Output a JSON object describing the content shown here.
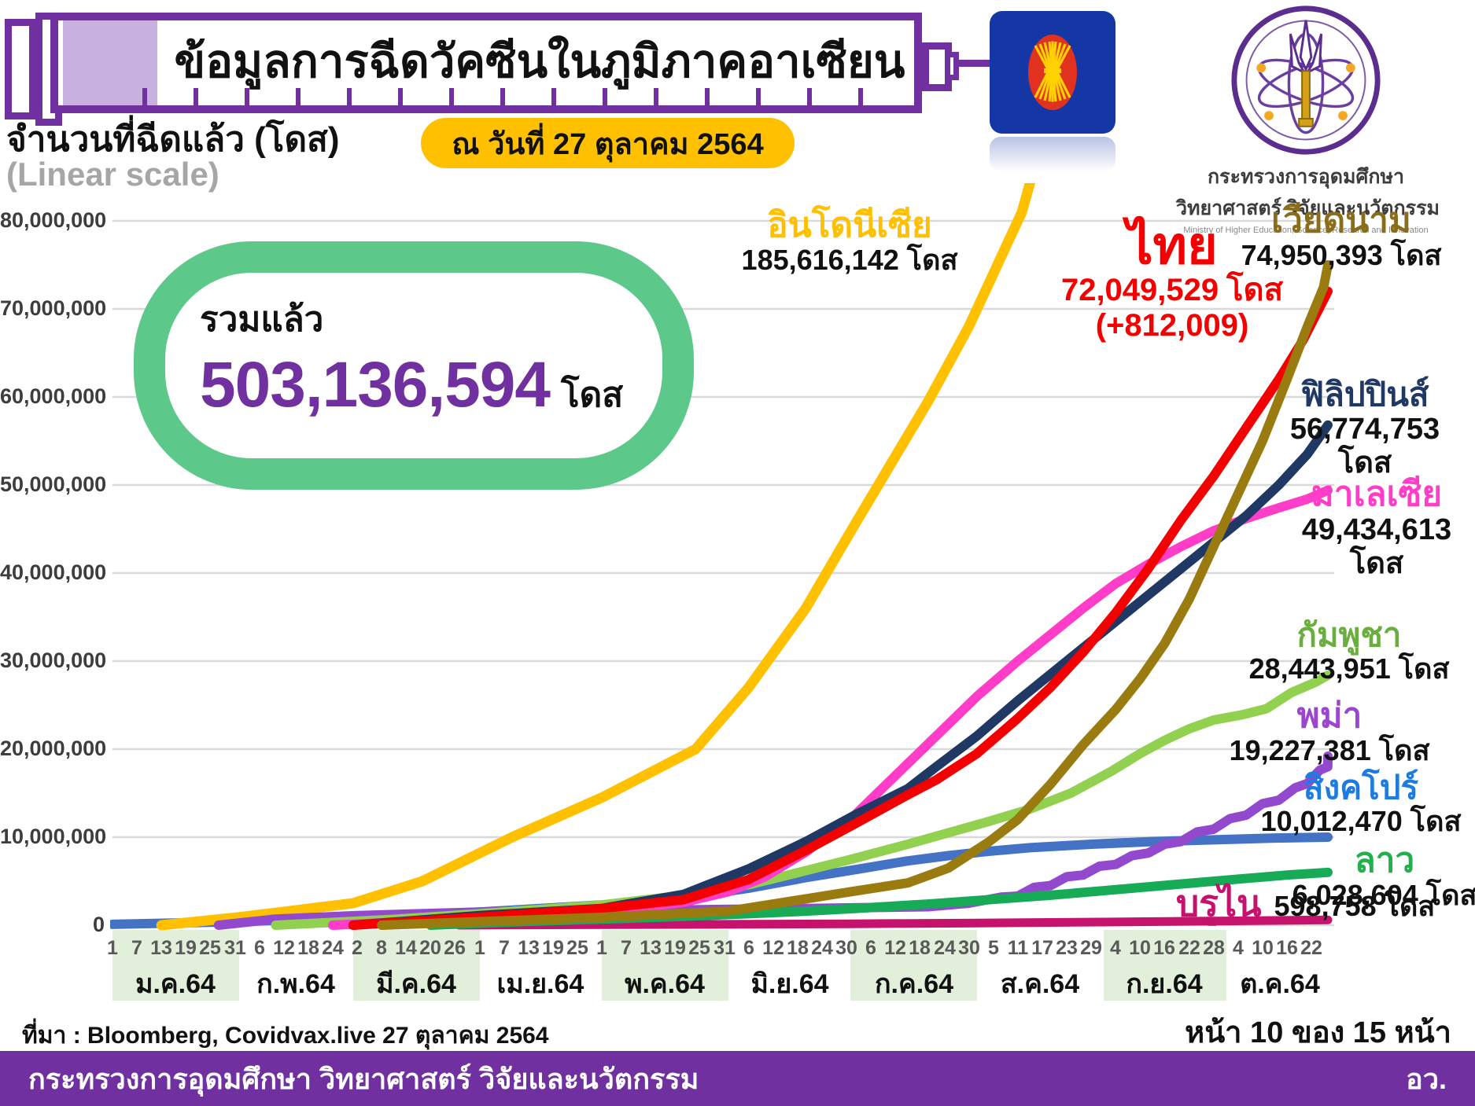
{
  "header": {
    "title": "ข้อมูลการฉีดวัคซีนในภูมิภาคอาเซียน",
    "date_badge": "ณ วันที่ 27 ตุลาคม 2564"
  },
  "axis_title": {
    "line1": "จำนวนที่ฉีดแล้ว (โดส)",
    "line2": "(Linear scale)"
  },
  "total_badge": {
    "caption": "รวมแล้ว",
    "value": "503,136,594",
    "unit": "โดส"
  },
  "ministry": {
    "name_line1": "กระทรวงการอุดมศึกษา",
    "name_line2": "วิทยาศาสตร์ วิจัยและนวัตกรรม",
    "name_en": "Ministry of Higher Education, Science, Research and Innovation"
  },
  "footer": {
    "source": "ที่มา : Bloomberg, Covidvax.live 27 ตุลาคม 2564",
    "page": "หน้า 10 ของ 15 หน้า",
    "bar_text": "กระทรวงการอุดมศึกษา วิทยาศาสตร์ วิจัยและนวัตกรรม",
    "bar_abbr": "อว."
  },
  "colors": {
    "accent_purple": "#7030A0",
    "plunger_lavender": "#C8B1DF",
    "pill_yellow": "#FFC000",
    "badge_green": "#5CC98A",
    "total_purple": "#7030A0",
    "gridline_gray": "#D9D9D9",
    "month_band_green": "#E2EFDA",
    "tick_text_gray": "#595959",
    "asean_blue": "#1437A5",
    "asean_red": "#E0321F",
    "asean_yellow": "#FFD100"
  },
  "chart_data": {
    "type": "line",
    "unit": "doses (points_million = million doses)",
    "title": "ข้อมูลการฉีดวัคซีนในภูมิภาคอาเซียน",
    "ylabel": "จำนวนที่ฉีดแล้ว (โดส)",
    "scale_note": "(Linear scale)",
    "ylim": [
      0,
      80000000
    ],
    "ytick_step": 10000000,
    "ytick_labels": [
      "0",
      "10,000,000",
      "20,000,000",
      "30,000,000",
      "40,000,000",
      "50,000,000",
      "60,000,000",
      "70,000,000",
      "80,000,000"
    ],
    "grid": "horizontal",
    "legend_position": "right-annotations",
    "x_months": [
      {
        "label": "ม.ค.64",
        "ndays": 31,
        "shaded": true,
        "days": [
          "1",
          "7",
          "13",
          "19",
          "25",
          "31"
        ]
      },
      {
        "label": "ก.พ.64",
        "ndays": 28,
        "shaded": false,
        "days": [
          "6",
          "12",
          "18",
          "24"
        ]
      },
      {
        "label": "มี.ค.64",
        "ndays": 31,
        "shaded": true,
        "days": [
          "2",
          "8",
          "14",
          "20",
          "26"
        ]
      },
      {
        "label": "เม.ย.64",
        "ndays": 30,
        "shaded": false,
        "days": [
          "1",
          "7",
          "13",
          "19",
          "25"
        ]
      },
      {
        "label": "พ.ค.64",
        "ndays": 31,
        "shaded": true,
        "days": [
          "1",
          "7",
          "13",
          "19",
          "25",
          "31"
        ]
      },
      {
        "label": "มิ.ย.64",
        "ndays": 30,
        "shaded": false,
        "days": [
          "6",
          "12",
          "18",
          "24",
          "30"
        ]
      },
      {
        "label": "ก.ค.64",
        "ndays": 31,
        "shaded": true,
        "days": [
          "6",
          "12",
          "18",
          "24",
          "30"
        ]
      },
      {
        "label": "ส.ค.64",
        "ndays": 31,
        "shaded": false,
        "days": [
          "5",
          "11",
          "17",
          "23",
          "29"
        ]
      },
      {
        "label": "ก.ย.64",
        "ndays": 30,
        "shaded": true,
        "days": [
          "4",
          "10",
          "16",
          "22",
          "28"
        ]
      },
      {
        "label": "ต.ค.64",
        "ndays": 27,
        "shaded": false,
        "days": [
          "4",
          "10",
          "16",
          "22"
        ]
      }
    ],
    "series": [
      {
        "id": "indonesia",
        "label": "อินโดนีเซีย",
        "value": "185,616,142",
        "unit": "โดส",
        "label_color": "#FFC000",
        "color": "#FFC000",
        "w": 13,
        "draw": 2,
        "points_million": [
          [
            12,
            0
          ],
          [
            31,
            0.9
          ],
          [
            59,
            2.5
          ],
          [
            76,
            5
          ],
          [
            98,
            10
          ],
          [
            120,
            14.5
          ],
          [
            143,
            20
          ],
          [
            156,
            27
          ],
          [
            170,
            36
          ],
          [
            182,
            45.5
          ],
          [
            200,
            59.5
          ],
          [
            210,
            68
          ],
          [
            223,
            81
          ],
          [
            226,
            86
          ]
        ]
      },
      {
        "id": "vietnam",
        "label": "เวียดนาม",
        "value": "74,950,393",
        "unit": "โดส",
        "label_color": "#8A6D1A",
        "color": "#9A7B10",
        "w": 12,
        "draw": 10,
        "points_million": [
          [
            66,
            0
          ],
          [
            120,
            0.9
          ],
          [
            151,
            1.6
          ],
          [
            181,
            3.8
          ],
          [
            195,
            4.8
          ],
          [
            205,
            6.5
          ],
          [
            215,
            9.5
          ],
          [
            222,
            12
          ],
          [
            230,
            16
          ],
          [
            238,
            20.5
          ],
          [
            246,
            24.5
          ],
          [
            252,
            28
          ],
          [
            258,
            32
          ],
          [
            264,
            37
          ],
          [
            270,
            43
          ],
          [
            276,
            49
          ],
          [
            282,
            55
          ],
          [
            288,
            62
          ],
          [
            293,
            68
          ],
          [
            297,
            72.5
          ],
          [
            299,
            75
          ]
        ]
      },
      {
        "id": "thailand",
        "label": "ไทย",
        "value": "72,049,529",
        "unit": "โดส",
        "delta": "(+812,009)",
        "label_color": "#F40000",
        "color": "#F40000",
        "w": 12,
        "draw": 9,
        "points_million": [
          [
            59,
            0
          ],
          [
            90,
            0.9
          ],
          [
            120,
            1.9
          ],
          [
            140,
            2.9
          ],
          [
            156,
            5.2
          ],
          [
            170,
            8.5
          ],
          [
            182,
            11.5
          ],
          [
            195,
            14.8
          ],
          [
            202,
            16.5
          ],
          [
            212,
            19.5
          ],
          [
            222,
            23.5
          ],
          [
            230,
            27
          ],
          [
            238,
            31
          ],
          [
            246,
            35.5
          ],
          [
            254,
            40.5
          ],
          [
            262,
            46
          ],
          [
            270,
            51
          ],
          [
            278,
            56.5
          ],
          [
            286,
            62
          ],
          [
            292,
            66.5
          ],
          [
            299,
            72
          ]
        ]
      },
      {
        "id": "philippines",
        "label": "ฟิลิปปินส์",
        "value": "56,774,753",
        "unit": "โดส",
        "label_color": "#1F3864",
        "color": "#1F3864",
        "w": 12,
        "draw": 8,
        "points_million": [
          [
            59,
            0
          ],
          [
            90,
            1.1
          ],
          [
            120,
            1.9
          ],
          [
            140,
            3.5
          ],
          [
            156,
            6.4
          ],
          [
            170,
            9.5
          ],
          [
            182,
            12.5
          ],
          [
            195,
            15.5
          ],
          [
            202,
            18
          ],
          [
            212,
            21.5
          ],
          [
            222,
            25.5
          ],
          [
            230,
            28.5
          ],
          [
            238,
            31.5
          ],
          [
            246,
            34.5
          ],
          [
            254,
            37.5
          ],
          [
            262,
            40.5
          ],
          [
            270,
            43.5
          ],
          [
            278,
            46.5
          ],
          [
            286,
            50
          ],
          [
            293,
            53.5
          ],
          [
            299,
            56.8
          ]
        ]
      },
      {
        "id": "malaysia",
        "label": "มาเลเซีย",
        "value": "49,434,613",
        "unit": "โดส",
        "label_color": "#FF3DC8",
        "color": "#FF3DC8",
        "w": 12,
        "draw": 7,
        "points_million": [
          [
            54,
            0
          ],
          [
            90,
            0.8
          ],
          [
            120,
            1.5
          ],
          [
            140,
            2.6
          ],
          [
            151,
            3.8
          ],
          [
            160,
            5.5
          ],
          [
            170,
            8.3
          ],
          [
            182,
            12.5
          ],
          [
            192,
            17
          ],
          [
            202,
            21.5
          ],
          [
            212,
            26
          ],
          [
            222,
            30
          ],
          [
            230,
            33
          ],
          [
            238,
            36
          ],
          [
            246,
            38.8
          ],
          [
            254,
            41
          ],
          [
            262,
            43
          ],
          [
            270,
            44.8
          ],
          [
            278,
            46.2
          ],
          [
            286,
            47.4
          ],
          [
            293,
            48.4
          ],
          [
            299,
            49.4
          ]
        ]
      },
      {
        "id": "cambodia",
        "label": "กัมพูชา",
        "value": "28,443,951",
        "unit": "โดส",
        "label_color": "#6AAE3F",
        "color": "#92D050",
        "w": 12,
        "draw": 4,
        "points_million": [
          [
            40,
            0
          ],
          [
            70,
            0.7
          ],
          [
            90,
            1.3
          ],
          [
            120,
            2.3
          ],
          [
            140,
            3.4
          ],
          [
            156,
            4.6
          ],
          [
            170,
            6.2
          ],
          [
            182,
            7.6
          ],
          [
            195,
            9.2
          ],
          [
            205,
            10.5
          ],
          [
            215,
            11.8
          ],
          [
            225,
            13.2
          ],
          [
            235,
            15
          ],
          [
            245,
            17.5
          ],
          [
            252,
            19.5
          ],
          [
            258,
            21
          ],
          [
            264,
            22.3
          ],
          [
            270,
            23.3
          ],
          [
            277,
            23.9
          ],
          [
            283,
            24.6
          ],
          [
            289,
            26.4
          ],
          [
            295,
            27.6
          ],
          [
            299,
            28.4
          ]
        ]
      },
      {
        "id": "myanmar",
        "label": "พม่า",
        "value": "19,227,381",
        "unit": "โดส",
        "label_color": "#9B45D0",
        "color": "#9349CE",
        "w": 12,
        "draw": 3,
        "points_million": [
          [
            26,
            0
          ],
          [
            40,
            0.7
          ],
          [
            60,
            1.1
          ],
          [
            90,
            1.5
          ],
          [
            130,
            1.7
          ],
          [
            170,
            1.9
          ],
          [
            200,
            2.1
          ],
          [
            210,
            2.5
          ],
          [
            218,
            3.2
          ],
          [
            222,
            3.3
          ],
          [
            226,
            4.3
          ],
          [
            230,
            4.5
          ],
          [
            234,
            5.5
          ],
          [
            238,
            5.7
          ],
          [
            242,
            6.7
          ],
          [
            246,
            6.9
          ],
          [
            250,
            7.9
          ],
          [
            254,
            8.2
          ],
          [
            258,
            9.2
          ],
          [
            262,
            9.5
          ],
          [
            266,
            10.6
          ],
          [
            270,
            10.9
          ],
          [
            274,
            12.1
          ],
          [
            278,
            12.5
          ],
          [
            282,
            13.8
          ],
          [
            286,
            14.2
          ],
          [
            290,
            15.6
          ],
          [
            293,
            16.1
          ],
          [
            296,
            17.6
          ],
          [
            298,
            18
          ],
          [
            299,
            19.2
          ]
        ]
      },
      {
        "id": "singapore",
        "label": "สิงคโปร์",
        "value": "10,012,470",
        "unit": "โดส",
        "label_color": "#1E7CE0",
        "color": "#4472C4",
        "w": 12,
        "draw": 1,
        "points_million": [
          [
            0,
            0.1
          ],
          [
            31,
            0.4
          ],
          [
            59,
            0.9
          ],
          [
            90,
            1.5
          ],
          [
            120,
            2.3
          ],
          [
            140,
            3.1
          ],
          [
            156,
            4.2
          ],
          [
            170,
            5.4
          ],
          [
            182,
            6.3
          ],
          [
            195,
            7.3
          ],
          [
            205,
            7.9
          ],
          [
            215,
            8.4
          ],
          [
            225,
            8.8
          ],
          [
            240,
            9.2
          ],
          [
            255,
            9.5
          ],
          [
            270,
            9.7
          ],
          [
            285,
            9.9
          ],
          [
            299,
            10
          ]
        ]
      },
      {
        "id": "laos",
        "label": "ลาว",
        "value": "6,028,604",
        "unit": "โดส",
        "label_color": "#21B04B",
        "color": "#17AB57",
        "w": 12,
        "draw": 6,
        "points_million": [
          [
            78,
            0
          ],
          [
            100,
            0.4
          ],
          [
            120,
            0.7
          ],
          [
            140,
            1
          ],
          [
            156,
            1.3
          ],
          [
            170,
            1.6
          ],
          [
            182,
            1.9
          ],
          [
            200,
            2.4
          ],
          [
            215,
            2.9
          ],
          [
            230,
            3.4
          ],
          [
            245,
            4
          ],
          [
            260,
            4.6
          ],
          [
            275,
            5.2
          ],
          [
            288,
            5.7
          ],
          [
            299,
            6
          ]
        ]
      },
      {
        "id": "brunei",
        "label": "บรูไน",
        "value": "598,758",
        "unit": "โดส",
        "label_color": "#C4126D",
        "color": "#C4126D",
        "w": 11,
        "draw": 5,
        "points_million": [
          [
            85,
            0
          ],
          [
            120,
            0.06
          ],
          [
            150,
            0.1
          ],
          [
            181,
            0.16
          ],
          [
            212,
            0.25
          ],
          [
            243,
            0.36
          ],
          [
            273,
            0.48
          ],
          [
            299,
            0.6
          ]
        ]
      }
    ]
  }
}
